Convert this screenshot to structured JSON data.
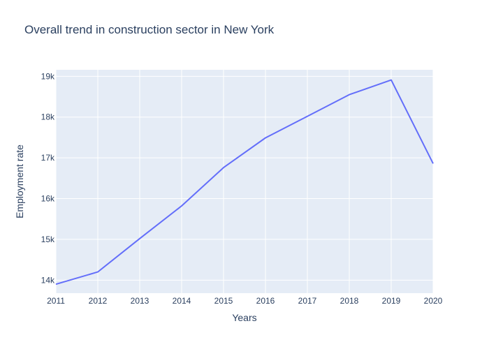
{
  "chart_data": {
    "type": "line",
    "title": "Overall trend in construction sector in New York",
    "xlabel": "Years",
    "ylabel": "Employment rate",
    "x": [
      2011,
      2012,
      2013,
      2014,
      2015,
      2016,
      2017,
      2018,
      2019,
      2020
    ],
    "series": [
      {
        "values": [
          13900,
          14200,
          15020,
          15820,
          16760,
          17490,
          18020,
          18550,
          18910,
          16860
        ]
      }
    ],
    "xlim": [
      2011,
      2020
    ],
    "ylim": [
      13680,
      19160
    ],
    "x_ticks": [
      "2011",
      "2012",
      "2013",
      "2014",
      "2015",
      "2016",
      "2017",
      "2018",
      "2019",
      "2020"
    ],
    "y_ticks": [
      {
        "value": 14000,
        "label": "14k"
      },
      {
        "value": 15000,
        "label": "15k"
      },
      {
        "value": 16000,
        "label": "16k"
      },
      {
        "value": 17000,
        "label": "17k"
      },
      {
        "value": 18000,
        "label": "18k"
      },
      {
        "value": 19000,
        "label": "19k"
      }
    ],
    "grid": true,
    "colors": {
      "line": "#636efa",
      "plot_bg": "#e5ecf6",
      "grid": "#ffffff",
      "text": "#2a3f5f"
    }
  }
}
